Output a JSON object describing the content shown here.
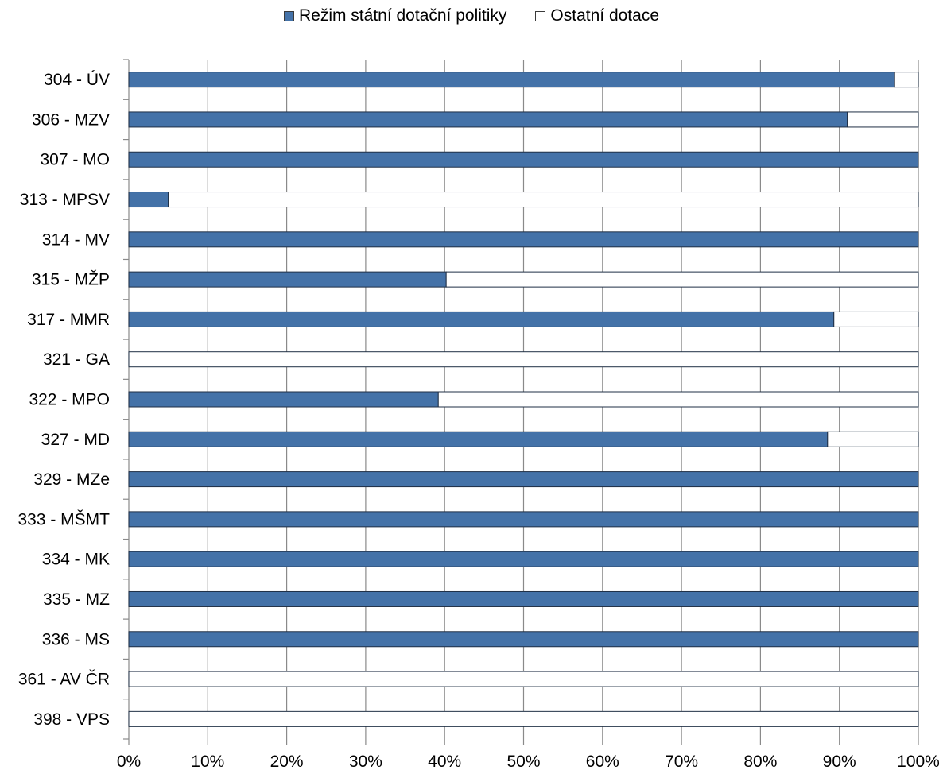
{
  "chart_data": {
    "type": "bar",
    "orientation": "horizontal",
    "stacked": "100%",
    "categories": [
      "304 - ÚV",
      "306 - MZV",
      "307 - MO",
      "313 - MPSV",
      "314 - MV",
      "315 - MŽP",
      "317 - MMR",
      "321 - GA",
      "322 - MPO",
      "327 - MD",
      "329 - MZe",
      "333 - MŠMT",
      "334 - MK",
      "335 - MZ",
      "336 - MS",
      "361 - AV ČR",
      "398 - VPS"
    ],
    "series": [
      {
        "name": "Režim státní dotační politiky",
        "color": "#4472a8",
        "values": [
          97,
          91,
          100,
          5,
          100,
          40.2,
          89.3,
          0,
          39.2,
          88.5,
          100,
          100,
          100,
          100,
          100,
          0,
          0
        ]
      },
      {
        "name": "Ostatní dotace",
        "color": "#ffffff",
        "values": [
          3,
          9,
          0,
          95,
          0,
          59.8,
          10.7,
          100,
          60.8,
          11.5,
          0,
          0,
          0,
          0,
          0,
          100,
          100
        ]
      }
    ],
    "x_ticks": [
      "0%",
      "10%",
      "20%",
      "30%",
      "40%",
      "50%",
      "60%",
      "70%",
      "80%",
      "90%",
      "100%"
    ],
    "xlim": [
      0,
      100
    ],
    "grid": "vertical",
    "legend_position": "top"
  }
}
